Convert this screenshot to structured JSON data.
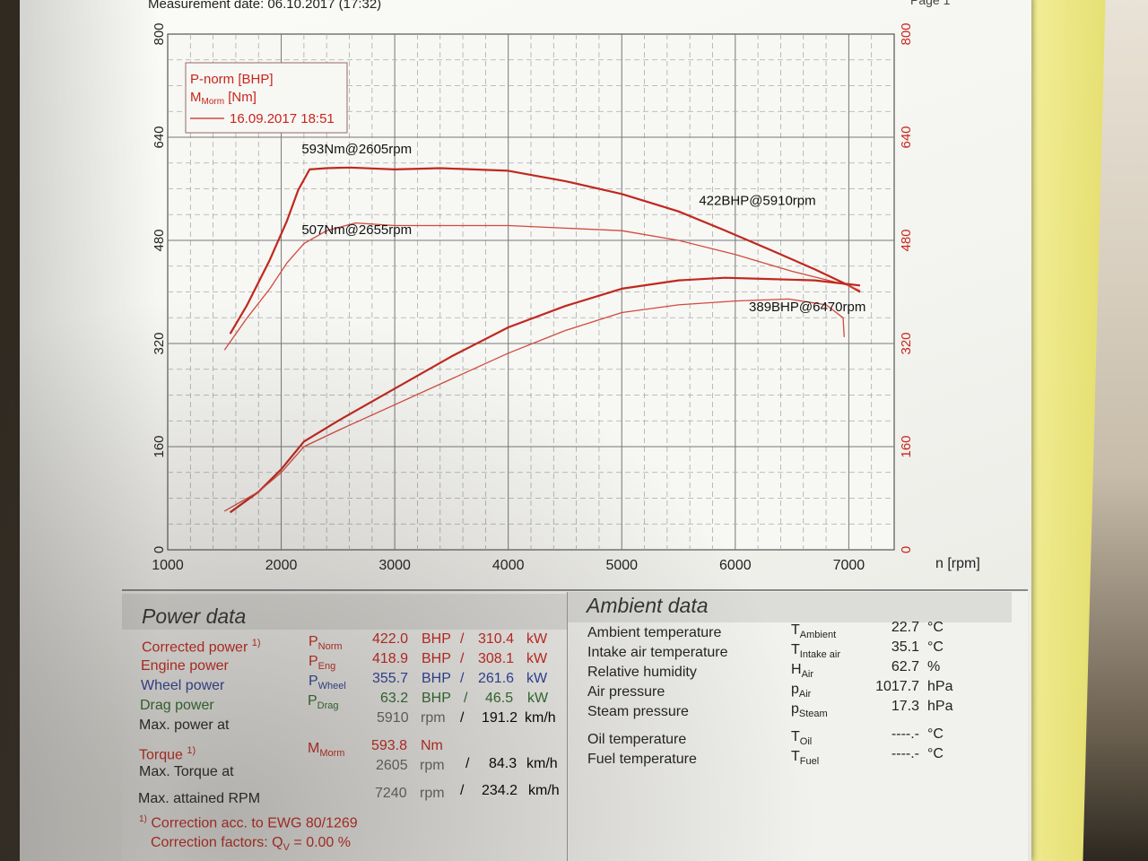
{
  "header": {
    "measurement_date": "Measurement date: 06.10.2017 (17:32)",
    "page": "Page 1"
  },
  "chart_data": {
    "type": "line",
    "xlabel": "n [rpm]",
    "x_ticks": [
      "1000",
      "2000",
      "3000",
      "4000",
      "5000",
      "6000",
      "7000"
    ],
    "xlim": [
      1000,
      7400
    ],
    "ylim": [
      0,
      800
    ],
    "y_ticks_left": [
      "0",
      "160",
      "320",
      "480",
      "640",
      "800"
    ],
    "y_ticks_right": [
      "0",
      "160",
      "320",
      "480",
      "640",
      "800"
    ],
    "grid": true,
    "legend": {
      "position": "top-left",
      "line1": "P-norm [BHP]",
      "line2_main": "M",
      "line2_sub": "Morm",
      "line2_rest": " [Nm]",
      "entry": "16.09.2017 18:51"
    },
    "annotations": [
      {
        "text": "593Nm@2605rpm"
      },
      {
        "text": "422BHP@5910rpm"
      },
      {
        "text": "507Nm@2655rpm"
      },
      {
        "text": "389BHP@6470rpm"
      }
    ],
    "series": [
      {
        "color": "#c0281e",
        "width": 2.2,
        "x": [
          1550,
          1700,
          1900,
          2050,
          2150,
          2250,
          2400,
          2605,
          3000,
          3400,
          4000,
          4500,
          5000,
          5500,
          5900,
          6300,
          6700,
          7000,
          7100
        ],
        "y": [
          335,
          380,
          450,
          510,
          558,
          590,
          592,
          593,
          590,
          592,
          588,
          572,
          552,
          525,
          496,
          466,
          435,
          410,
          400
        ]
      },
      {
        "color": "#d24a3c",
        "width": 1.3,
        "x": [
          1500,
          1700,
          1900,
          2050,
          2200,
          2400,
          2655,
          3000,
          4000,
          5000,
          5500,
          6000,
          6500,
          7000,
          7100
        ],
        "y": [
          310,
          360,
          405,
          445,
          475,
          495,
          507,
          503,
          503,
          495,
          480,
          458,
          432,
          410,
          402
        ]
      },
      {
        "color": "#c0281e",
        "width": 2.2,
        "x": [
          1550,
          1800,
          2000,
          2200,
          2500,
          3000,
          3500,
          4000,
          4500,
          5000,
          5500,
          5910,
          6300,
          6700,
          7000,
          7100
        ],
        "y": [
          58,
          90,
          125,
          168,
          200,
          250,
          300,
          345,
          378,
          405,
          418,
          422,
          420,
          418,
          412,
          410
        ]
      },
      {
        "color": "#d24a3c",
        "width": 1.3,
        "x": [
          1500,
          1800,
          2000,
          2200,
          2500,
          3000,
          3500,
          4000,
          4500,
          5000,
          5500,
          6000,
          6470,
          6800,
          6950,
          6960
        ],
        "y": [
          60,
          90,
          120,
          160,
          185,
          225,
          265,
          305,
          340,
          368,
          380,
          386,
          389,
          380,
          360,
          330
        ]
      }
    ]
  },
  "power_data": {
    "title": "Power data",
    "corrected_power_label": "Corrected power",
    "correction_mark": "1)",
    "engine_power_label": "Engine power",
    "wheel_power_label": "Wheel power",
    "drag_power_label": "Drag power",
    "max_power_at_label": "Max. power at",
    "torque_label": "Torque",
    "max_torque_at_label": "Max. Torque at",
    "max_rpm_label": "Max. attained RPM",
    "sym_p": "P",
    "sym_m": "M",
    "sub_norm": "Norm",
    "sub_eng": "Eng",
    "sub_wheel": "Wheel",
    "sub_drag": "Drag",
    "sub_morm": "Morm",
    "unit_bhp": "BHP",
    "unit_kw": "kW",
    "unit_rpm": "rpm",
    "unit_kmh": "km/h",
    "unit_nm": "Nm",
    "slash": "/",
    "corrected_bhp": "422.0",
    "corrected_kw": "310.4",
    "engine_bhp": "418.9",
    "engine_kw": "308.1",
    "wheel_bhp": "355.7",
    "wheel_kw": "261.6",
    "drag_bhp": "63.2",
    "drag_kw": "46.5",
    "max_power_rpm": "5910",
    "max_power_speed": "191.2",
    "torque_nm": "593.8",
    "max_torque_rpm": "2605",
    "max_torque_speed": "84.3",
    "max_attained_rpm": "7240",
    "max_attained_speed": "234.2",
    "footnote_mark": "1)",
    "footnote_text": "Correction acc. to EWG 80/1269",
    "correction_factors_prefix": "Correction factors: Q",
    "correction_factors_sub": "V",
    "correction_factors_value": " =   0.00 %"
  },
  "ambient_data": {
    "title": "Ambient data",
    "rows": [
      {
        "label": "Ambient temperature",
        "sym": "T",
        "sub": "Ambient",
        "value": "22.7",
        "unit": "°C"
      },
      {
        "label": "Intake air temperature",
        "sym": "T",
        "sub": "Intake air",
        "value": "35.1",
        "unit": "°C"
      },
      {
        "label": "Relative humidity",
        "sym": "H",
        "sub": "Air",
        "value": "62.7",
        "unit": "%"
      },
      {
        "label": "Air pressure",
        "sym": "p",
        "sub": "Air",
        "value": "1017.7",
        "unit": "hPa"
      },
      {
        "label": "Steam pressure",
        "sym": "p",
        "sub": "Steam",
        "value": "17.3",
        "unit": "hPa"
      },
      {
        "label": "Oil temperature",
        "sym": "T",
        "sub": "Oil",
        "value": "----.-",
        "unit": "°C"
      },
      {
        "label": "Fuel temperature",
        "sym": "T",
        "sub": "Fuel",
        "value": "----.-",
        "unit": "°C"
      }
    ]
  }
}
